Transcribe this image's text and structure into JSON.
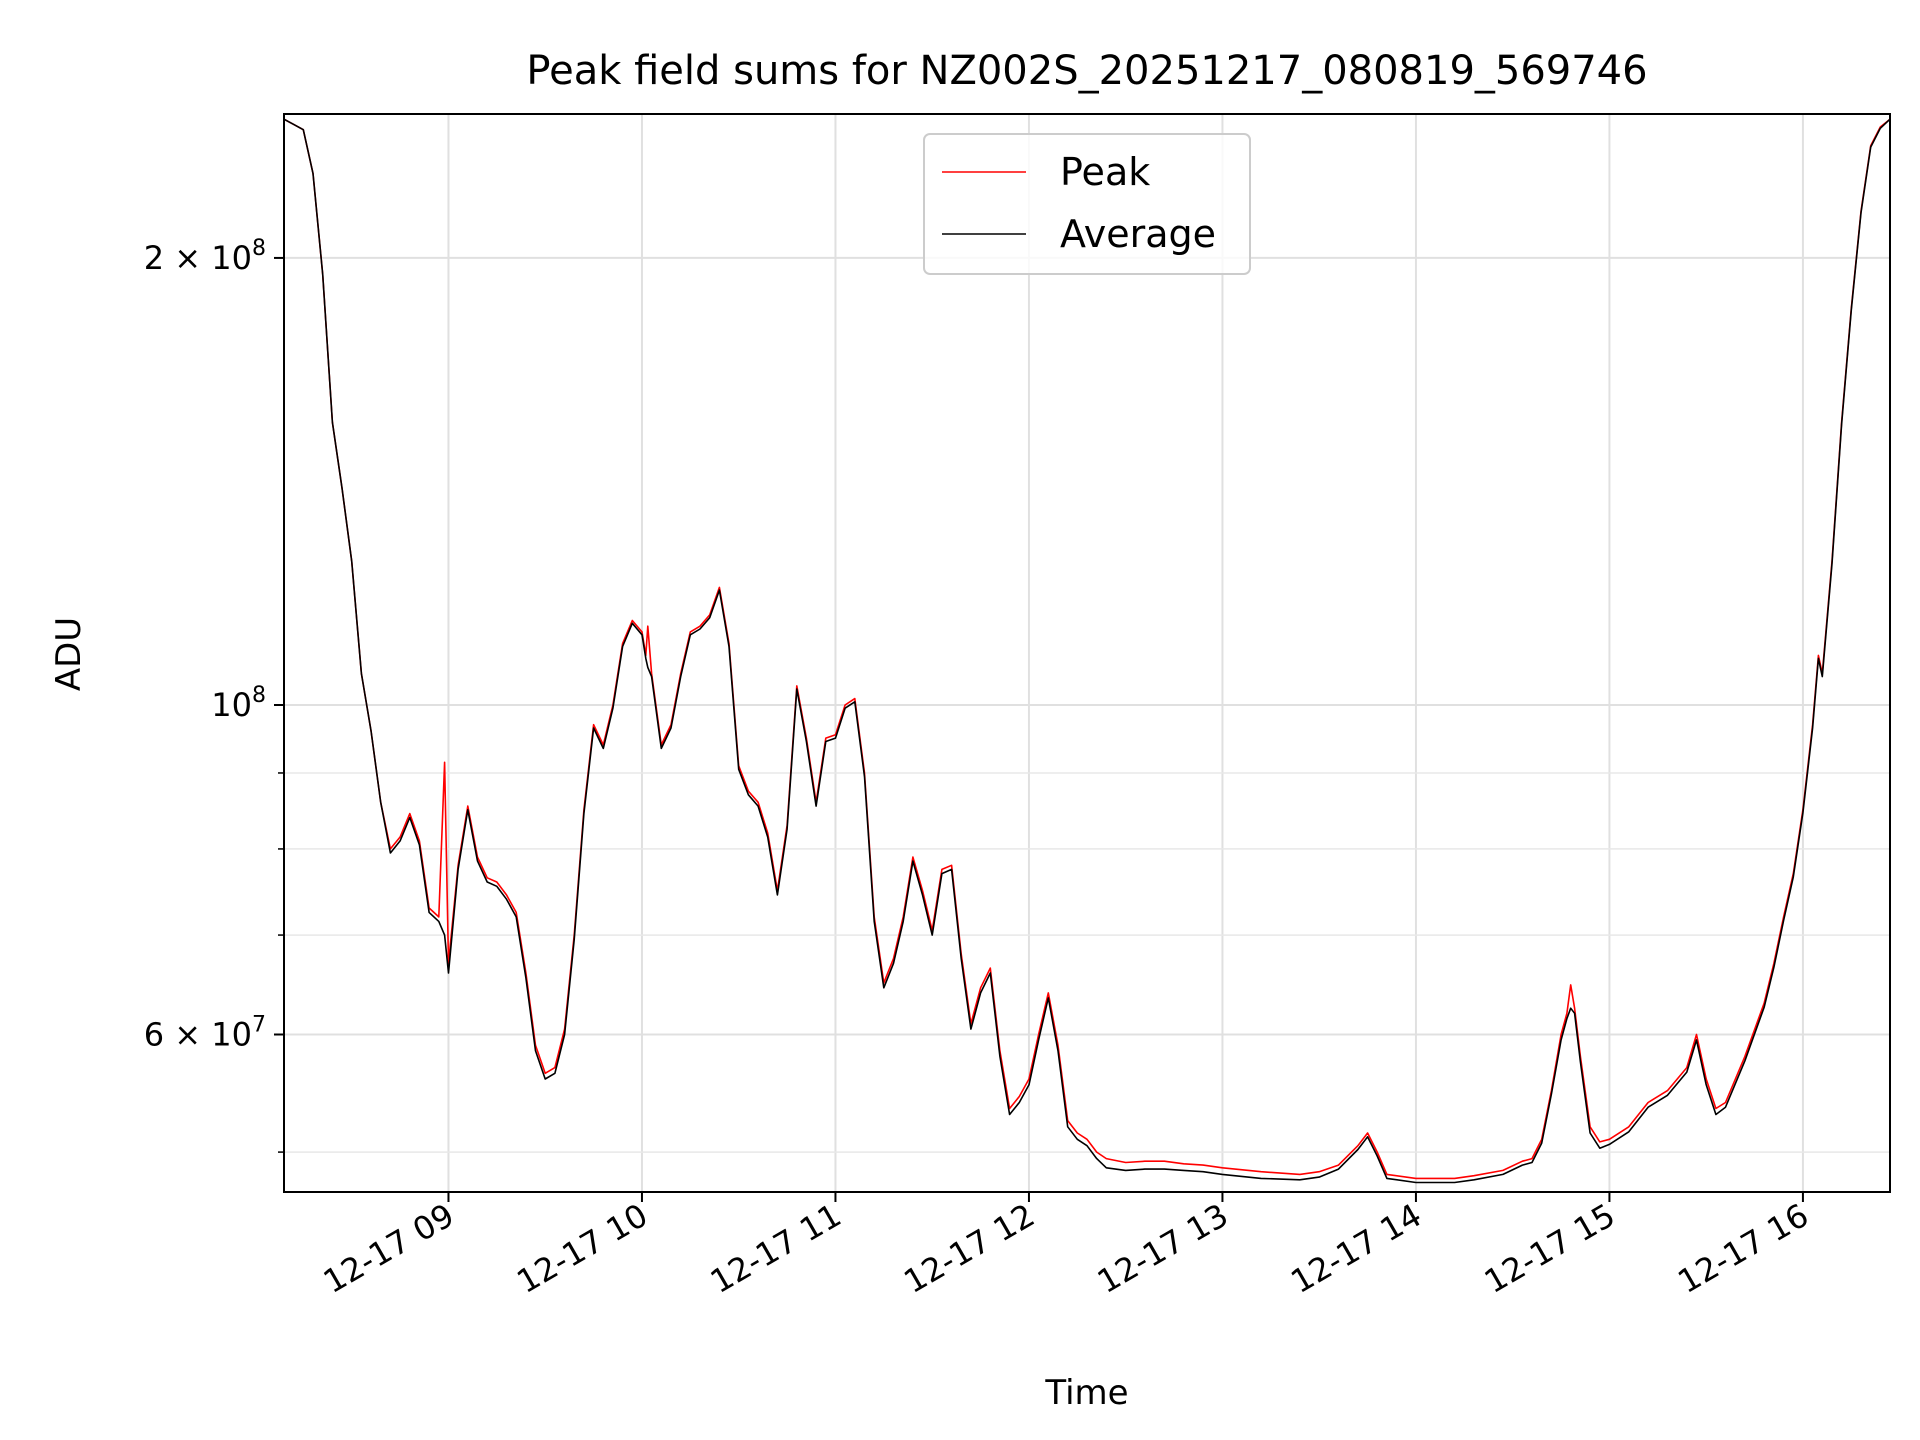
{
  "chart_data": {
    "type": "line",
    "title": "Peak field sums for NZ002S_20251217_080819_569746",
    "xlabel": "Time",
    "ylabel": "ADU",
    "yscale": "log",
    "ylim": [
      47000000,
      250000000
    ],
    "xlim_hours": [
      8.15,
      16.45
    ],
    "grid": true,
    "legend_loc": "upper center",
    "x_ticks": [
      {
        "label": "12-17 09",
        "hour": 9
      },
      {
        "label": "12-17 10",
        "hour": 10
      },
      {
        "label": "12-17 11",
        "hour": 11
      },
      {
        "label": "12-17 12",
        "hour": 12
      },
      {
        "label": "12-17 13",
        "hour": 13
      },
      {
        "label": "12-17 14",
        "hour": 14
      },
      {
        "label": "12-17 15",
        "hour": 15
      },
      {
        "label": "12-17 16",
        "hour": 16
      }
    ],
    "y_major_ticks": [
      {
        "value": 60000000,
        "base": "6 × 10",
        "exp": "7"
      },
      {
        "value": 100000000,
        "base": "10",
        "exp": "8"
      },
      {
        "value": 200000000,
        "base": "2 × 10",
        "exp": "8"
      }
    ],
    "y_minor_ticks": [
      50000000,
      70000000,
      80000000,
      90000000
    ],
    "series": [
      {
        "name": "Peak",
        "color": "#ff0000",
        "points": [
          [
            8.15,
            248000000
          ],
          [
            8.2,
            246000000
          ],
          [
            8.25,
            244000000
          ],
          [
            8.3,
            228000000
          ],
          [
            8.35,
            195000000
          ],
          [
            8.4,
            155000000
          ],
          [
            8.45,
            140000000
          ],
          [
            8.5,
            125000000
          ],
          [
            8.55,
            105000000
          ],
          [
            8.6,
            96000000
          ],
          [
            8.65,
            86000000
          ],
          [
            8.7,
            80000000
          ],
          [
            8.75,
            81500000
          ],
          [
            8.8,
            84500000
          ],
          [
            8.85,
            81000000
          ],
          [
            8.9,
            73000000
          ],
          [
            8.95,
            72000000
          ],
          [
            8.98,
            91500000
          ],
          [
            9.0,
            67000000
          ],
          [
            9.05,
            78000000
          ],
          [
            9.1,
            85500000
          ],
          [
            9.15,
            79000000
          ],
          [
            9.2,
            76500000
          ],
          [
            9.25,
            76000000
          ],
          [
            9.3,
            74500000
          ],
          [
            9.35,
            72500000
          ],
          [
            9.4,
            66000000
          ],
          [
            9.45,
            59000000
          ],
          [
            9.5,
            56500000
          ],
          [
            9.55,
            57000000
          ],
          [
            9.6,
            60500000
          ],
          [
            9.65,
            70000000
          ],
          [
            9.7,
            85000000
          ],
          [
            9.75,
            97000000
          ],
          [
            9.8,
            94000000
          ],
          [
            9.85,
            100000000
          ],
          [
            9.9,
            110000000
          ],
          [
            9.95,
            114000000
          ],
          [
            10.0,
            112000000
          ],
          [
            10.02,
            108000000
          ],
          [
            10.03,
            113000000
          ],
          [
            10.05,
            105000000
          ],
          [
            10.1,
            94000000
          ],
          [
            10.15,
            97000000
          ],
          [
            10.2,
            105000000
          ],
          [
            10.25,
            112000000
          ],
          [
            10.3,
            113000000
          ],
          [
            10.35,
            115000000
          ],
          [
            10.4,
            120000000
          ],
          [
            10.45,
            110000000
          ],
          [
            10.5,
            91000000
          ],
          [
            10.55,
            87500000
          ],
          [
            10.6,
            86000000
          ],
          [
            10.65,
            82000000
          ],
          [
            10.7,
            75000000
          ],
          [
            10.75,
            83000000
          ],
          [
            10.8,
            103000000
          ],
          [
            10.85,
            95000000
          ],
          [
            10.9,
            86000000
          ],
          [
            10.95,
            95000000
          ],
          [
            11.0,
            95500000
          ],
          [
            11.05,
            100000000
          ],
          [
            11.1,
            101000000
          ],
          [
            11.15,
            90000000
          ],
          [
            11.2,
            72000000
          ],
          [
            11.25,
            65000000
          ],
          [
            11.3,
            67500000
          ],
          [
            11.35,
            72000000
          ],
          [
            11.4,
            79000000
          ],
          [
            11.45,
            75000000
          ],
          [
            11.5,
            70500000
          ],
          [
            11.55,
            77500000
          ],
          [
            11.6,
            78000000
          ],
          [
            11.65,
            68000000
          ],
          [
            11.7,
            61000000
          ],
          [
            11.75,
            64500000
          ],
          [
            11.8,
            66500000
          ],
          [
            11.85,
            58500000
          ],
          [
            11.9,
            53500000
          ],
          [
            11.95,
            54500000
          ],
          [
            12.0,
            56000000
          ],
          [
            12.05,
            60000000
          ],
          [
            12.1,
            64000000
          ],
          [
            12.15,
            59000000
          ],
          [
            12.2,
            52500000
          ],
          [
            12.25,
            51500000
          ],
          [
            12.3,
            51000000
          ],
          [
            12.35,
            50000000
          ],
          [
            12.4,
            49500000
          ],
          [
            12.5,
            49200000
          ],
          [
            12.6,
            49300000
          ],
          [
            12.7,
            49300000
          ],
          [
            12.8,
            49100000
          ],
          [
            12.9,
            49000000
          ],
          [
            13.0,
            48800000
          ],
          [
            13.2,
            48500000
          ],
          [
            13.4,
            48300000
          ],
          [
            13.5,
            48500000
          ],
          [
            13.6,
            49000000
          ],
          [
            13.7,
            50500000
          ],
          [
            13.75,
            51500000
          ],
          [
            13.8,
            50000000
          ],
          [
            13.85,
            48300000
          ],
          [
            14.0,
            48000000
          ],
          [
            14.2,
            48000000
          ],
          [
            14.3,
            48200000
          ],
          [
            14.45,
            48600000
          ],
          [
            14.55,
            49300000
          ],
          [
            14.6,
            49500000
          ],
          [
            14.65,
            51000000
          ],
          [
            14.7,
            55000000
          ],
          [
            14.75,
            60000000
          ],
          [
            14.78,
            62000000
          ],
          [
            14.8,
            64800000
          ],
          [
            14.82,
            62500000
          ],
          [
            14.85,
            58000000
          ],
          [
            14.9,
            52000000
          ],
          [
            14.95,
            50800000
          ],
          [
            15.0,
            51000000
          ],
          [
            15.1,
            52000000
          ],
          [
            15.2,
            54000000
          ],
          [
            15.3,
            55000000
          ],
          [
            15.4,
            57000000
          ],
          [
            15.45,
            60000000
          ],
          [
            15.5,
            56000000
          ],
          [
            15.55,
            53500000
          ],
          [
            15.6,
            54000000
          ],
          [
            15.7,
            58000000
          ],
          [
            15.8,
            63000000
          ],
          [
            15.85,
            67000000
          ],
          [
            15.9,
            72000000
          ],
          [
            15.95,
            77000000
          ],
          [
            16.0,
            85000000
          ],
          [
            16.05,
            97000000
          ],
          [
            16.08,
            108000000
          ],
          [
            16.1,
            105000000
          ],
          [
            16.15,
            125000000
          ],
          [
            16.2,
            155000000
          ],
          [
            16.25,
            185000000
          ],
          [
            16.3,
            215000000
          ],
          [
            16.35,
            238000000
          ],
          [
            16.4,
            245000000
          ],
          [
            16.45,
            248000000
          ]
        ]
      },
      {
        "name": "Average",
        "color": "#000000",
        "points": [
          [
            8.15,
            248000000
          ],
          [
            8.2,
            246000000
          ],
          [
            8.25,
            244000000
          ],
          [
            8.3,
            228000000
          ],
          [
            8.35,
            195000000
          ],
          [
            8.4,
            155000000
          ],
          [
            8.45,
            140000000
          ],
          [
            8.5,
            125000000
          ],
          [
            8.55,
            105000000
          ],
          [
            8.6,
            96000000
          ],
          [
            8.65,
            86000000
          ],
          [
            8.7,
            79500000
          ],
          [
            8.75,
            81000000
          ],
          [
            8.8,
            84000000
          ],
          [
            8.85,
            80500000
          ],
          [
            8.9,
            72500000
          ],
          [
            8.95,
            71500000
          ],
          [
            8.98,
            70000000
          ],
          [
            9.0,
            66000000
          ],
          [
            9.05,
            77500000
          ],
          [
            9.1,
            85000000
          ],
          [
            9.15,
            78500000
          ],
          [
            9.2,
            76000000
          ],
          [
            9.25,
            75500000
          ],
          [
            9.3,
            74000000
          ],
          [
            9.35,
            72000000
          ],
          [
            9.4,
            65500000
          ],
          [
            9.45,
            58500000
          ],
          [
            9.5,
            56000000
          ],
          [
            9.55,
            56500000
          ],
          [
            9.6,
            60000000
          ],
          [
            9.65,
            69500000
          ],
          [
            9.7,
            84500000
          ],
          [
            9.75,
            96500000
          ],
          [
            9.8,
            93500000
          ],
          [
            9.85,
            99500000
          ],
          [
            9.9,
            109500000
          ],
          [
            9.95,
            113500000
          ],
          [
            10.0,
            111500000
          ],
          [
            10.02,
            107500000
          ],
          [
            10.03,
            106000000
          ],
          [
            10.05,
            104500000
          ],
          [
            10.1,
            93500000
          ],
          [
            10.15,
            96500000
          ],
          [
            10.2,
            104500000
          ],
          [
            10.25,
            111500000
          ],
          [
            10.3,
            112500000
          ],
          [
            10.35,
            114500000
          ],
          [
            10.4,
            119500000
          ],
          [
            10.45,
            109500000
          ],
          [
            10.5,
            90500000
          ],
          [
            10.55,
            87000000
          ],
          [
            10.6,
            85500000
          ],
          [
            10.65,
            81500000
          ],
          [
            10.7,
            74500000
          ],
          [
            10.75,
            82500000
          ],
          [
            10.8,
            102500000
          ],
          [
            10.85,
            94500000
          ],
          [
            10.9,
            85500000
          ],
          [
            10.95,
            94500000
          ],
          [
            11.0,
            95000000
          ],
          [
            11.05,
            99500000
          ],
          [
            11.1,
            100500000
          ],
          [
            11.15,
            89500000
          ],
          [
            11.2,
            71500000
          ],
          [
            11.25,
            64500000
          ],
          [
            11.3,
            67000000
          ],
          [
            11.35,
            71500000
          ],
          [
            11.4,
            78500000
          ],
          [
            11.45,
            74500000
          ],
          [
            11.5,
            70000000
          ],
          [
            11.55,
            77000000
          ],
          [
            11.6,
            77500000
          ],
          [
            11.65,
            67500000
          ],
          [
            11.7,
            60500000
          ],
          [
            11.75,
            64000000
          ],
          [
            11.8,
            66000000
          ],
          [
            11.85,
            58000000
          ],
          [
            11.9,
            53000000
          ],
          [
            11.95,
            54000000
          ],
          [
            12.0,
            55500000
          ],
          [
            12.05,
            59500000
          ],
          [
            12.1,
            63500000
          ],
          [
            12.15,
            58500000
          ],
          [
            12.2,
            52000000
          ],
          [
            12.25,
            51000000
          ],
          [
            12.3,
            50500000
          ],
          [
            12.35,
            49500000
          ],
          [
            12.4,
            48800000
          ],
          [
            12.5,
            48600000
          ],
          [
            12.6,
            48700000
          ],
          [
            12.7,
            48700000
          ],
          [
            12.8,
            48600000
          ],
          [
            12.9,
            48500000
          ],
          [
            13.0,
            48300000
          ],
          [
            13.2,
            48000000
          ],
          [
            13.4,
            47900000
          ],
          [
            13.5,
            48100000
          ],
          [
            13.6,
            48700000
          ],
          [
            13.7,
            50200000
          ],
          [
            13.75,
            51200000
          ],
          [
            13.8,
            49700000
          ],
          [
            13.85,
            48000000
          ],
          [
            14.0,
            47700000
          ],
          [
            14.2,
            47700000
          ],
          [
            14.3,
            47900000
          ],
          [
            14.45,
            48300000
          ],
          [
            14.55,
            49000000
          ],
          [
            14.6,
            49200000
          ],
          [
            14.65,
            50700000
          ],
          [
            14.7,
            54700000
          ],
          [
            14.75,
            59500000
          ],
          [
            14.78,
            61500000
          ],
          [
            14.8,
            62500000
          ],
          [
            14.82,
            62000000
          ],
          [
            14.85,
            57500000
          ],
          [
            14.9,
            51500000
          ],
          [
            14.95,
            50300000
          ],
          [
            15.0,
            50600000
          ],
          [
            15.1,
            51600000
          ],
          [
            15.2,
            53600000
          ],
          [
            15.3,
            54600000
          ],
          [
            15.4,
            56600000
          ],
          [
            15.45,
            59500000
          ],
          [
            15.5,
            55500000
          ],
          [
            15.55,
            53000000
          ],
          [
            15.6,
            53600000
          ],
          [
            15.7,
            57600000
          ],
          [
            15.8,
            62600000
          ],
          [
            15.85,
            66600000
          ],
          [
            15.9,
            71600000
          ],
          [
            15.95,
            76600000
          ],
          [
            16.0,
            84600000
          ],
          [
            16.05,
            96500000
          ],
          [
            16.08,
            107500000
          ],
          [
            16.1,
            104500000
          ],
          [
            16.15,
            124500000
          ],
          [
            16.2,
            154500000
          ],
          [
            16.25,
            184500000
          ],
          [
            16.3,
            214500000
          ],
          [
            16.35,
            237500000
          ],
          [
            16.4,
            244500000
          ],
          [
            16.45,
            248000000
          ]
        ]
      }
    ]
  }
}
